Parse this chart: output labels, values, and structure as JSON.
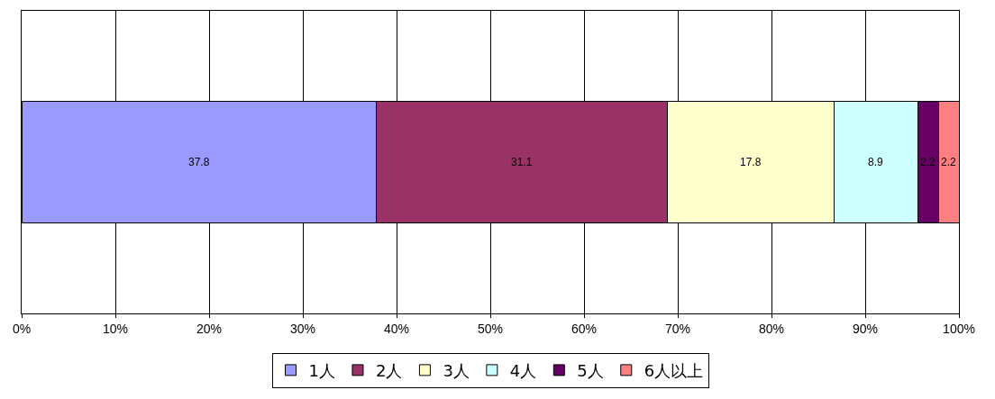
{
  "chart_data": {
    "type": "bar",
    "orientation": "horizontal",
    "stacked": true,
    "categories": [
      null
    ],
    "series": [
      {
        "name": "1人",
        "color": "#9999ff",
        "values": [
          37.8
        ]
      },
      {
        "name": "2人",
        "color": "#993366",
        "values": [
          31.1
        ]
      },
      {
        "name": "3人",
        "color": "#ffffcc",
        "values": [
          17.8
        ]
      },
      {
        "name": "4人",
        "color": "#ccffff",
        "values": [
          8.9
        ]
      },
      {
        "name": "5人",
        "color": "#660066",
        "values": [
          2.2
        ]
      },
      {
        "name": "6人以上",
        "color": "#ff8080",
        "values": [
          2.2
        ]
      }
    ],
    "xlim": [
      0,
      100
    ],
    "xticks": [
      {
        "value": 0,
        "label": "0%"
      },
      {
        "value": 10,
        "label": "10%"
      },
      {
        "value": 20,
        "label": "20%"
      },
      {
        "value": 30,
        "label": "30%"
      },
      {
        "value": 40,
        "label": "40%"
      },
      {
        "value": 50,
        "label": "50%"
      },
      {
        "value": 60,
        "label": "60%"
      },
      {
        "value": 70,
        "label": "70%"
      },
      {
        "value": 80,
        "label": "80%"
      },
      {
        "value": 90,
        "label": "90%"
      },
      {
        "value": 100,
        "label": "100%"
      }
    ],
    "grid": "x",
    "legend": "bottom",
    "data_labels": true
  }
}
